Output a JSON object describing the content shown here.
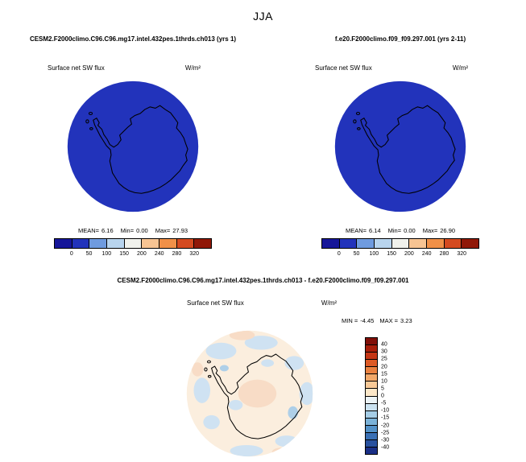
{
  "season_title": "JJA",
  "panels": [
    {
      "title": "CESM2.F2000climo.C96.C96.mg17.intel.432pes.1thrds.ch013 (yrs 1)",
      "field_label": "Surface net SW flux",
      "units_label": "W/m²",
      "map_fill": "#2233bb",
      "coast_color": "#000000",
      "stats": {
        "mean_label": "MEAN=",
        "mean": "6.16",
        "min_label": "Min=",
        "min": "0.00",
        "max_label": "Max=",
        "max": "27.93"
      },
      "colorbar": {
        "colors": [
          "#161699",
          "#2233bb",
          "#6f9bdf",
          "#b8d4ee",
          "#f0f1ec",
          "#f7c493",
          "#f09048",
          "#d44a20",
          "#901808"
        ],
        "ticks": [
          "0",
          "50",
          "100",
          "150",
          "200",
          "240",
          "280",
          "320"
        ]
      }
    },
    {
      "title": "f.e20.F2000climo.f09_f09.297.001 (yrs 2-11)",
      "field_label": "Surface net SW flux",
      "units_label": "W/m²",
      "map_fill": "#2233bb",
      "coast_color": "#000000",
      "stats": {
        "mean_label": "MEAN=",
        "mean": "6.14",
        "min_label": "Min=",
        "min": "0.00",
        "max_label": "Max=",
        "max": "26.90"
      },
      "colorbar": {
        "colors": [
          "#161699",
          "#2233bb",
          "#6f9bdf",
          "#b8d4ee",
          "#f0f1ec",
          "#f7c493",
          "#f09048",
          "#d44a20",
          "#901808"
        ],
        "ticks": [
          "0",
          "50",
          "100",
          "150",
          "200",
          "240",
          "280",
          "320"
        ]
      }
    }
  ],
  "diff_panel": {
    "title": "CESM2.F2000climo.C96.C96.mg17.intel.432pes.1thrds.ch013 - f.e20.F2000climo.f09_f09.297.001",
    "field_label": "Surface net SW flux",
    "units_label": "W/m²",
    "stats": {
      "min_label": "MIN =",
      "min": "-4.45",
      "max_label": "MAX =",
      "max": "3.23"
    },
    "map": {
      "base_fill": "#fbeede",
      "neg_fill": "#cfe2f2",
      "neg_fill2": "#aecfe8",
      "pos_fill": "#f8dcc6",
      "coast_color": "#000000",
      "rim_color": "#cccccc"
    },
    "colorbar": {
      "colors": [
        "#800f08",
        "#a81e0a",
        "#c53615",
        "#dd5a25",
        "#ea8140",
        "#f2a869",
        "#f8c997",
        "#fce7c8",
        "#ecf3f6",
        "#cbe2f0",
        "#a5cde6",
        "#7bb2d8",
        "#5492c8",
        "#3a70b5",
        "#28519f",
        "#1a2f86"
      ],
      "ticks": [
        "40",
        "30",
        "25",
        "20",
        "15",
        "10",
        "5",
        "0",
        "-5",
        "-10",
        "-15",
        "-20",
        "-25",
        "-30",
        "-40"
      ]
    }
  },
  "chart_data": [
    {
      "type": "heatmap",
      "subtype": "south-polar-stereographic-map",
      "season": "JJA",
      "title": "CESM2.F2000climo.C96.C96.mg17.intel.432pes.1thrds.ch013 (yrs 1)",
      "field": "Surface net SW flux",
      "units": "W/m²",
      "stats": {
        "mean": 6.16,
        "min": 0.0,
        "max": 27.93
      },
      "levels": [
        0,
        50,
        100,
        150,
        200,
        240,
        280,
        320
      ],
      "legend_position": "bottom",
      "note": "Field nearly uniform at lowest color class (polar night, ~0 W/m²)"
    },
    {
      "type": "heatmap",
      "subtype": "south-polar-stereographic-map",
      "season": "JJA",
      "title": "f.e20.F2000climo.f09_f09.297.001 (yrs 2-11)",
      "field": "Surface net SW flux",
      "units": "W/m²",
      "stats": {
        "mean": 6.14,
        "min": 0.0,
        "max": 26.9
      },
      "levels": [
        0,
        50,
        100,
        150,
        200,
        240,
        280,
        320
      ],
      "legend_position": "bottom",
      "note": "Field nearly uniform at lowest color class (polar night, ~0 W/m²)"
    },
    {
      "type": "heatmap",
      "subtype": "south-polar-stereographic-map-difference",
      "season": "JJA",
      "title": "CESM2.F2000climo.C96.C96.mg17.intel.432pes.1thrds.ch013 - f.e20.F2000climo.f09_f09.297.001",
      "field": "Surface net SW flux",
      "units": "W/m²",
      "stats": {
        "min": -4.45,
        "max": 3.23
      },
      "levels": [
        40,
        30,
        25,
        20,
        15,
        10,
        5,
        0,
        -5,
        -10,
        -15,
        -20,
        -25,
        -30,
        -40
      ],
      "legend_position": "right",
      "note": "Differences within ±5 W/m²: pale blue and pale pink patches only"
    }
  ]
}
